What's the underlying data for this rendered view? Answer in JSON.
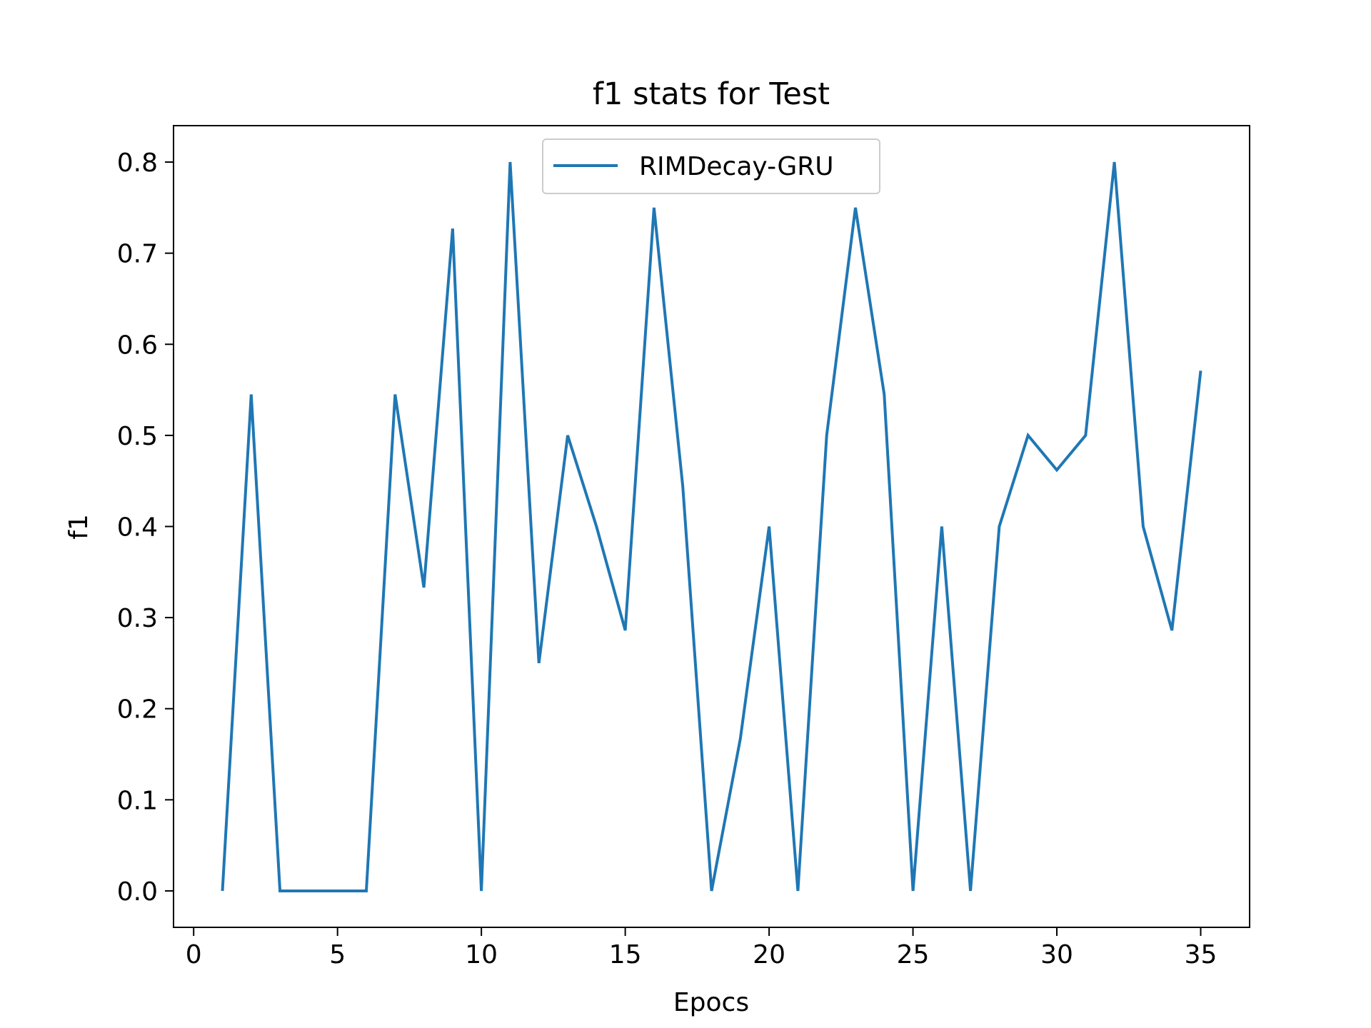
{
  "chart_data": {
    "type": "line",
    "title": "f1 stats for Test",
    "xlabel": "Epocs",
    "ylabel": "f1",
    "xlim": [
      -0.7,
      36.7
    ],
    "ylim": [
      -0.04,
      0.84
    ],
    "xticks": [
      0,
      5,
      10,
      15,
      20,
      25,
      30,
      35
    ],
    "xtick_labels": [
      "0",
      "5",
      "10",
      "15",
      "20",
      "25",
      "30",
      "35"
    ],
    "yticks": [
      0.0,
      0.1,
      0.2,
      0.3,
      0.4,
      0.5,
      0.6,
      0.7,
      0.8
    ],
    "ytick_labels": [
      "0.0",
      "0.1",
      "0.2",
      "0.3",
      "0.4",
      "0.5",
      "0.6",
      "0.7",
      "0.8"
    ],
    "grid": false,
    "legend_position": "top-center",
    "x": [
      1,
      2,
      3,
      4,
      5,
      6,
      7,
      8,
      9,
      10,
      11,
      12,
      13,
      14,
      15,
      16,
      17,
      18,
      19,
      20,
      21,
      22,
      23,
      24,
      25,
      26,
      27,
      28,
      29,
      30,
      31,
      32,
      33,
      34,
      35
    ],
    "series": [
      {
        "name": "RIMDecay-GRU",
        "color": "#1f77b4",
        "values": [
          0.0,
          0.545,
          0.0,
          0.0,
          0.0,
          0.0,
          0.545,
          0.333,
          0.727,
          0.0,
          0.8,
          0.25,
          0.5,
          0.4,
          0.286,
          0.75,
          0.444,
          0.0,
          0.167,
          0.4,
          0.0,
          0.5,
          0.75,
          0.545,
          0.0,
          0.4,
          0.0,
          0.4,
          0.5,
          0.462,
          0.5,
          0.8,
          0.4,
          0.286,
          0.571
        ]
      }
    ]
  }
}
